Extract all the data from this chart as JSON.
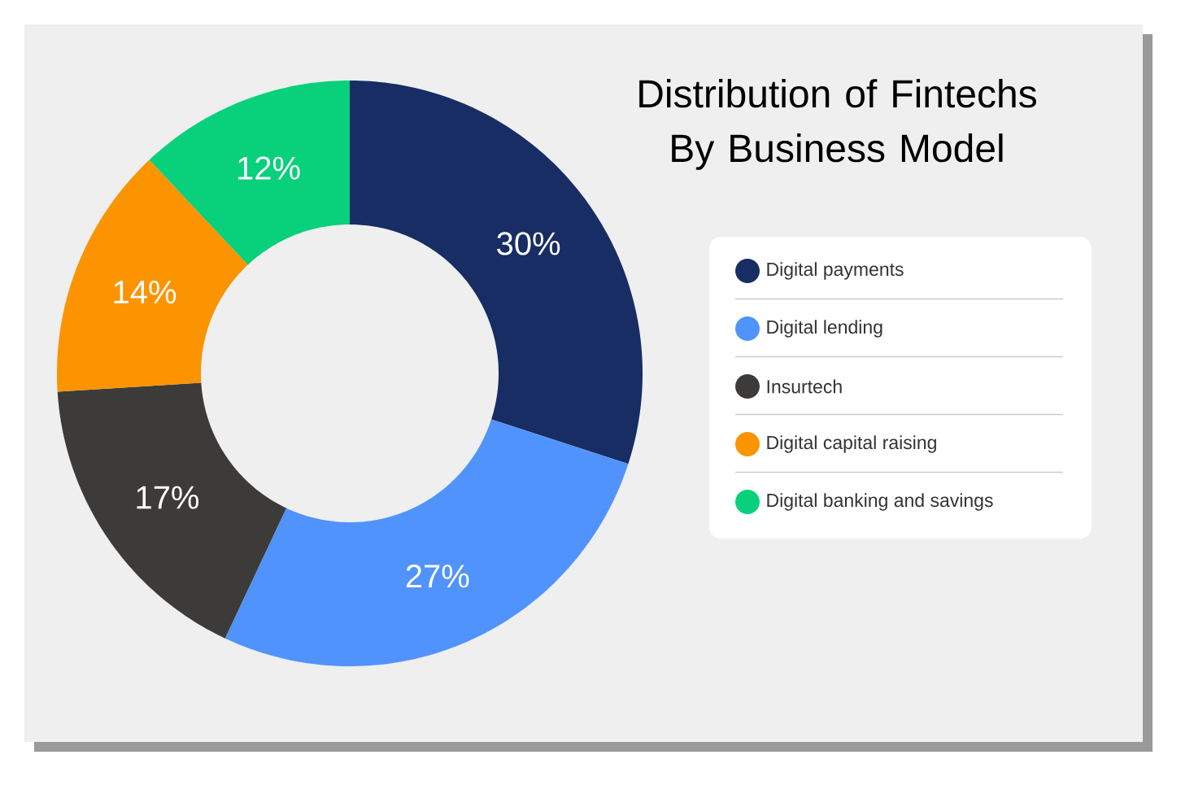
{
  "chart_data": {
    "type": "donut",
    "title": "Distribution of Fintechs By Business Model",
    "categories": [
      "Digital payments",
      "Digital lending",
      "Insurtech",
      "Digital capital raising",
      "Digital banking and savings"
    ],
    "values": [
      30,
      27,
      17,
      14,
      12
    ],
    "value_labels": [
      "30%",
      "27%",
      "17%",
      "14%",
      "12%"
    ],
    "colors": [
      "#172d63",
      "#5193fc",
      "#3d3b39",
      "#fb9400",
      "#08d07b"
    ],
    "legend": "right"
  }
}
